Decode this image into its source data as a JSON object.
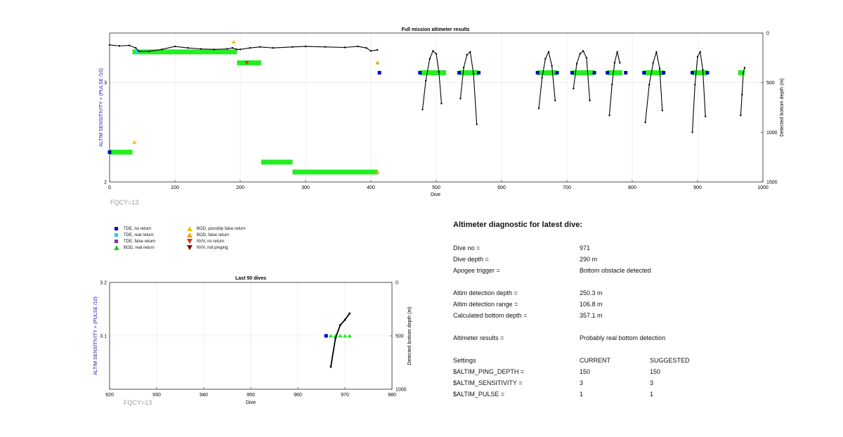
{
  "chart_data": [
    {
      "type": "scatter",
      "title": "Full mission altimeter results",
      "xlabel": "Dive",
      "ylabel": "ALTIM SENSITIVITY + (PULSE /10)",
      "y2label": "Detected bottom depth (m)",
      "xlim": [
        0,
        1000
      ],
      "ylim": [
        2,
        3.5
      ],
      "y2lim": [
        1500,
        0
      ],
      "y2_reversed": true,
      "xticks": [
        0,
        100,
        200,
        300,
        400,
        500,
        600,
        700,
        800,
        900,
        1000
      ],
      "yticks": [
        2,
        3
      ],
      "y2ticks": [
        0,
        500,
        1000,
        1500
      ],
      "grid": true,
      "setting_segments": [
        {
          "x0": 0,
          "x1": 35,
          "y": 2.3,
          "class": "BOD, real return"
        },
        {
          "x0": 35,
          "x1": 195,
          "y": 3.31,
          "class": "BOD, real return"
        },
        {
          "x0": 195,
          "x1": 232,
          "y": 3.2,
          "class": "BOD, real return"
        },
        {
          "x0": 232,
          "x1": 280,
          "y": 2.2,
          "class": "BOD, real return"
        },
        {
          "x0": 280,
          "x1": 410,
          "y": 2.1,
          "class": "BOD, real return"
        },
        {
          "x0": 475,
          "x1": 515,
          "y": 3.1,
          "class": "BOD, real return"
        },
        {
          "x0": 535,
          "x1": 565,
          "y": 3.1,
          "class": "BOD, real return"
        },
        {
          "x0": 655,
          "x1": 685,
          "y": 3.1,
          "class": "BOD, real return"
        },
        {
          "x0": 708,
          "x1": 742,
          "y": 3.1,
          "class": "BOD, real return"
        },
        {
          "x0": 762,
          "x1": 785,
          "y": 3.1,
          "class": "BOD, real return"
        },
        {
          "x0": 818,
          "x1": 848,
          "y": 3.1,
          "class": "BOD, real return"
        },
        {
          "x0": 892,
          "x1": 915,
          "y": 3.1,
          "class": "BOD, real return"
        },
        {
          "x0": 962,
          "x1": 972,
          "y": 3.1,
          "class": "BOD, real return"
        }
      ],
      "tde_points": [
        {
          "x": 0,
          "y": 2.3,
          "class": "TDE, no return"
        },
        {
          "x": 42,
          "y": 3.31,
          "class": "TDE, real return"
        },
        {
          "x": 413,
          "y": 3.1,
          "class": "TDE, no return"
        },
        {
          "x": 475,
          "y": 3.1,
          "class": "TDE, no return"
        },
        {
          "x": 535,
          "y": 3.1,
          "class": "TDE, no return"
        },
        {
          "x": 565,
          "y": 3.1,
          "class": "TDE, no return"
        },
        {
          "x": 655,
          "y": 3.1,
          "class": "TDE, no return"
        },
        {
          "x": 685,
          "y": 3.1,
          "class": "TDE, no return"
        },
        {
          "x": 708,
          "y": 3.1,
          "class": "TDE, no return"
        },
        {
          "x": 742,
          "y": 3.1,
          "class": "TDE, no return"
        },
        {
          "x": 762,
          "y": 3.1,
          "class": "TDE, no return"
        },
        {
          "x": 790,
          "y": 3.1,
          "class": "TDE, no return"
        },
        {
          "x": 818,
          "y": 3.1,
          "class": "TDE, no return"
        },
        {
          "x": 848,
          "y": 3.1,
          "class": "TDE, no return"
        },
        {
          "x": 892,
          "y": 3.1,
          "class": "TDE, no return"
        },
        {
          "x": 915,
          "y": 3.1,
          "class": "TDE, no return"
        }
      ],
      "flag_points": [
        {
          "x": 38,
          "y": 2.4,
          "class": "BOD, possibly false return"
        },
        {
          "x": 190,
          "y": 3.41,
          "class": "BOD, possibly false return"
        },
        {
          "x": 410,
          "y": 3.2,
          "class": "BOD, false return"
        },
        {
          "x": 410,
          "y": 2.1,
          "class": "BOD, false return"
        },
        {
          "x": 210,
          "y": 3.2,
          "class": "NVV, no return"
        }
      ],
      "depth_series": [
        {
          "class": "early",
          "x": [
            0,
            15,
            30,
            40,
            45,
            60,
            80,
            100,
            120,
            140,
            160,
            180,
            188,
            195,
            200,
            215,
            230,
            250,
            280,
            300,
            330,
            360,
            380,
            393,
            400,
            410
          ],
          "depth": [
            120,
            130,
            125,
            150,
            185,
            185,
            165,
            135,
            150,
            160,
            165,
            160,
            150,
            165,
            165,
            150,
            140,
            150,
            140,
            135,
            140,
            145,
            135,
            150,
            180,
            170
          ]
        },
        {
          "class": "dive-arc",
          "x": [
            479,
            484,
            490,
            495,
            500,
            504,
            508
          ],
          "depth": [
            770,
            480,
            260,
            180,
            210,
            390,
            710
          ]
        },
        {
          "class": "dive-arc",
          "x": [
            537,
            542,
            547,
            552,
            557,
            562
          ],
          "depth": [
            660,
            350,
            220,
            190,
            410,
            920
          ]
        },
        {
          "class": "dive-arc",
          "x": [
            657,
            662,
            667,
            672,
            677,
            682
          ],
          "depth": [
            760,
            450,
            260,
            190,
            330,
            680
          ]
        },
        {
          "class": "dive-arc",
          "x": [
            710,
            715,
            720,
            725,
            730,
            735
          ],
          "depth": [
            560,
            310,
            210,
            180,
            250,
            680
          ]
        },
        {
          "class": "dive-arc",
          "x": [
            765,
            769,
            773,
            777,
            781
          ],
          "depth": [
            830,
            520,
            300,
            190,
            300
          ]
        },
        {
          "class": "dive-arc",
          "x": [
            820,
            826,
            832,
            837,
            842,
            846
          ],
          "depth": [
            900,
            520,
            300,
            190,
            360,
            780
          ]
        },
        {
          "class": "dive-arc",
          "x": [
            892,
            896,
            900,
            904,
            908,
            912
          ],
          "depth": [
            1000,
            520,
            240,
            190,
            370,
            840
          ]
        },
        {
          "class": "dive-arc",
          "x": [
            966,
            968,
            970,
            972
          ],
          "depth": [
            830,
            620,
            400,
            350
          ]
        }
      ]
    },
    {
      "type": "scatter",
      "title": "Last 50 dives",
      "xlabel": "Dive",
      "ylabel": "ALTIM SENSITIVITY + (PULSE /10)",
      "y2label": "Detected bottom depth (m)",
      "xlim": [
        920,
        980
      ],
      "ylim": [
        3.0,
        3.2
      ],
      "y2lim": [
        1000,
        0
      ],
      "y2_reversed": true,
      "xticks": [
        920,
        930,
        940,
        950,
        960,
        970,
        980
      ],
      "yticks": [
        3.1,
        3.2
      ],
      "y2ticks": [
        0,
        500,
        1000
      ],
      "grid": true,
      "tde_points": [
        {
          "x": 966,
          "y": 3.1,
          "class": "TDE, no return"
        }
      ],
      "bod_points": [
        {
          "x": 967,
          "y": 3.1,
          "class": "BOD, real return"
        },
        {
          "x": 968,
          "y": 3.1,
          "class": "BOD, real return"
        },
        {
          "x": 969,
          "y": 3.1,
          "class": "BOD, real return"
        },
        {
          "x": 970,
          "y": 3.1,
          "class": "BOD, real return"
        },
        {
          "x": 971,
          "y": 3.1,
          "class": "BOD, real return"
        }
      ],
      "depth_series": [
        {
          "x": [
            967,
            968,
            969,
            970,
            971
          ],
          "depth": [
            790,
            520,
            400,
            350,
            290
          ]
        }
      ]
    }
  ],
  "fqcy_main": "FQCY=13",
  "fqcy_recent": "FQCY=13",
  "legend": [
    {
      "label": "TDE, no return",
      "shape": "square",
      "color": "#0000cc"
    },
    {
      "label": "TDE, real return",
      "shape": "square",
      "color": "#22d3ee"
    },
    {
      "label": "TDE, false return",
      "shape": "square",
      "color": "#7b2fbf"
    },
    {
      "label": "BOD, real return",
      "shape": "triangle-up",
      "color": "#22cc22"
    },
    {
      "label": "BOD, possibly false return",
      "shape": "triangle-up",
      "color": "#f5c400"
    },
    {
      "label": "BOD, false return",
      "shape": "triangle-up",
      "color": "#f0a020"
    },
    {
      "label": "NVV, no return",
      "shape": "triangle-down",
      "color": "#e03010"
    },
    {
      "label": "NVV, not pinging",
      "shape": "triangle-down",
      "color": "#7a1010"
    }
  ],
  "colors": {
    "bod_real": "#22ee22",
    "bod_possibly_false": "#f5c400",
    "bod_false": "#f0a020",
    "tde_no_return": "#0000cc",
    "tde_real_return": "#22d3ee",
    "nvv_no_return": "#e03010",
    "depth_line": "#000000",
    "axis_label_blue": "#1a1aa8"
  },
  "diagnostic": {
    "title": "Altimeter diagnostic for latest dive:",
    "dive_no_label": "Dive no =",
    "dive_no_value": "971",
    "dive_depth_label": "Dive depth =",
    "dive_depth_value": "290 m",
    "apogee_label": "Apogee trigger =",
    "apogee_value": "Bottom obstacle detected",
    "altim_depth_label": "Altim detection depth =",
    "altim_depth_value": "250.3 m",
    "altim_range_label": "Altim detection range =",
    "altim_range_value": "106.8 m",
    "calc_bottom_label": "Calculated bottom depth =",
    "calc_bottom_value": "357.1 m",
    "results_label": "Altimeter results =",
    "results_value": "Probably real bottom detection",
    "settings_label": "Settings",
    "current_label": "CURRENT",
    "suggested_label": "SUGGESTED",
    "settings": [
      {
        "name": "$ALTIM_PING_DEPTH =",
        "current": "150",
        "suggested": "150"
      },
      {
        "name": "$ALTIM_SENSITIVITY =",
        "current": "3",
        "suggested": "3"
      },
      {
        "name": "$ALTIM_PULSE =",
        "current": "1",
        "suggested": "1"
      }
    ]
  }
}
